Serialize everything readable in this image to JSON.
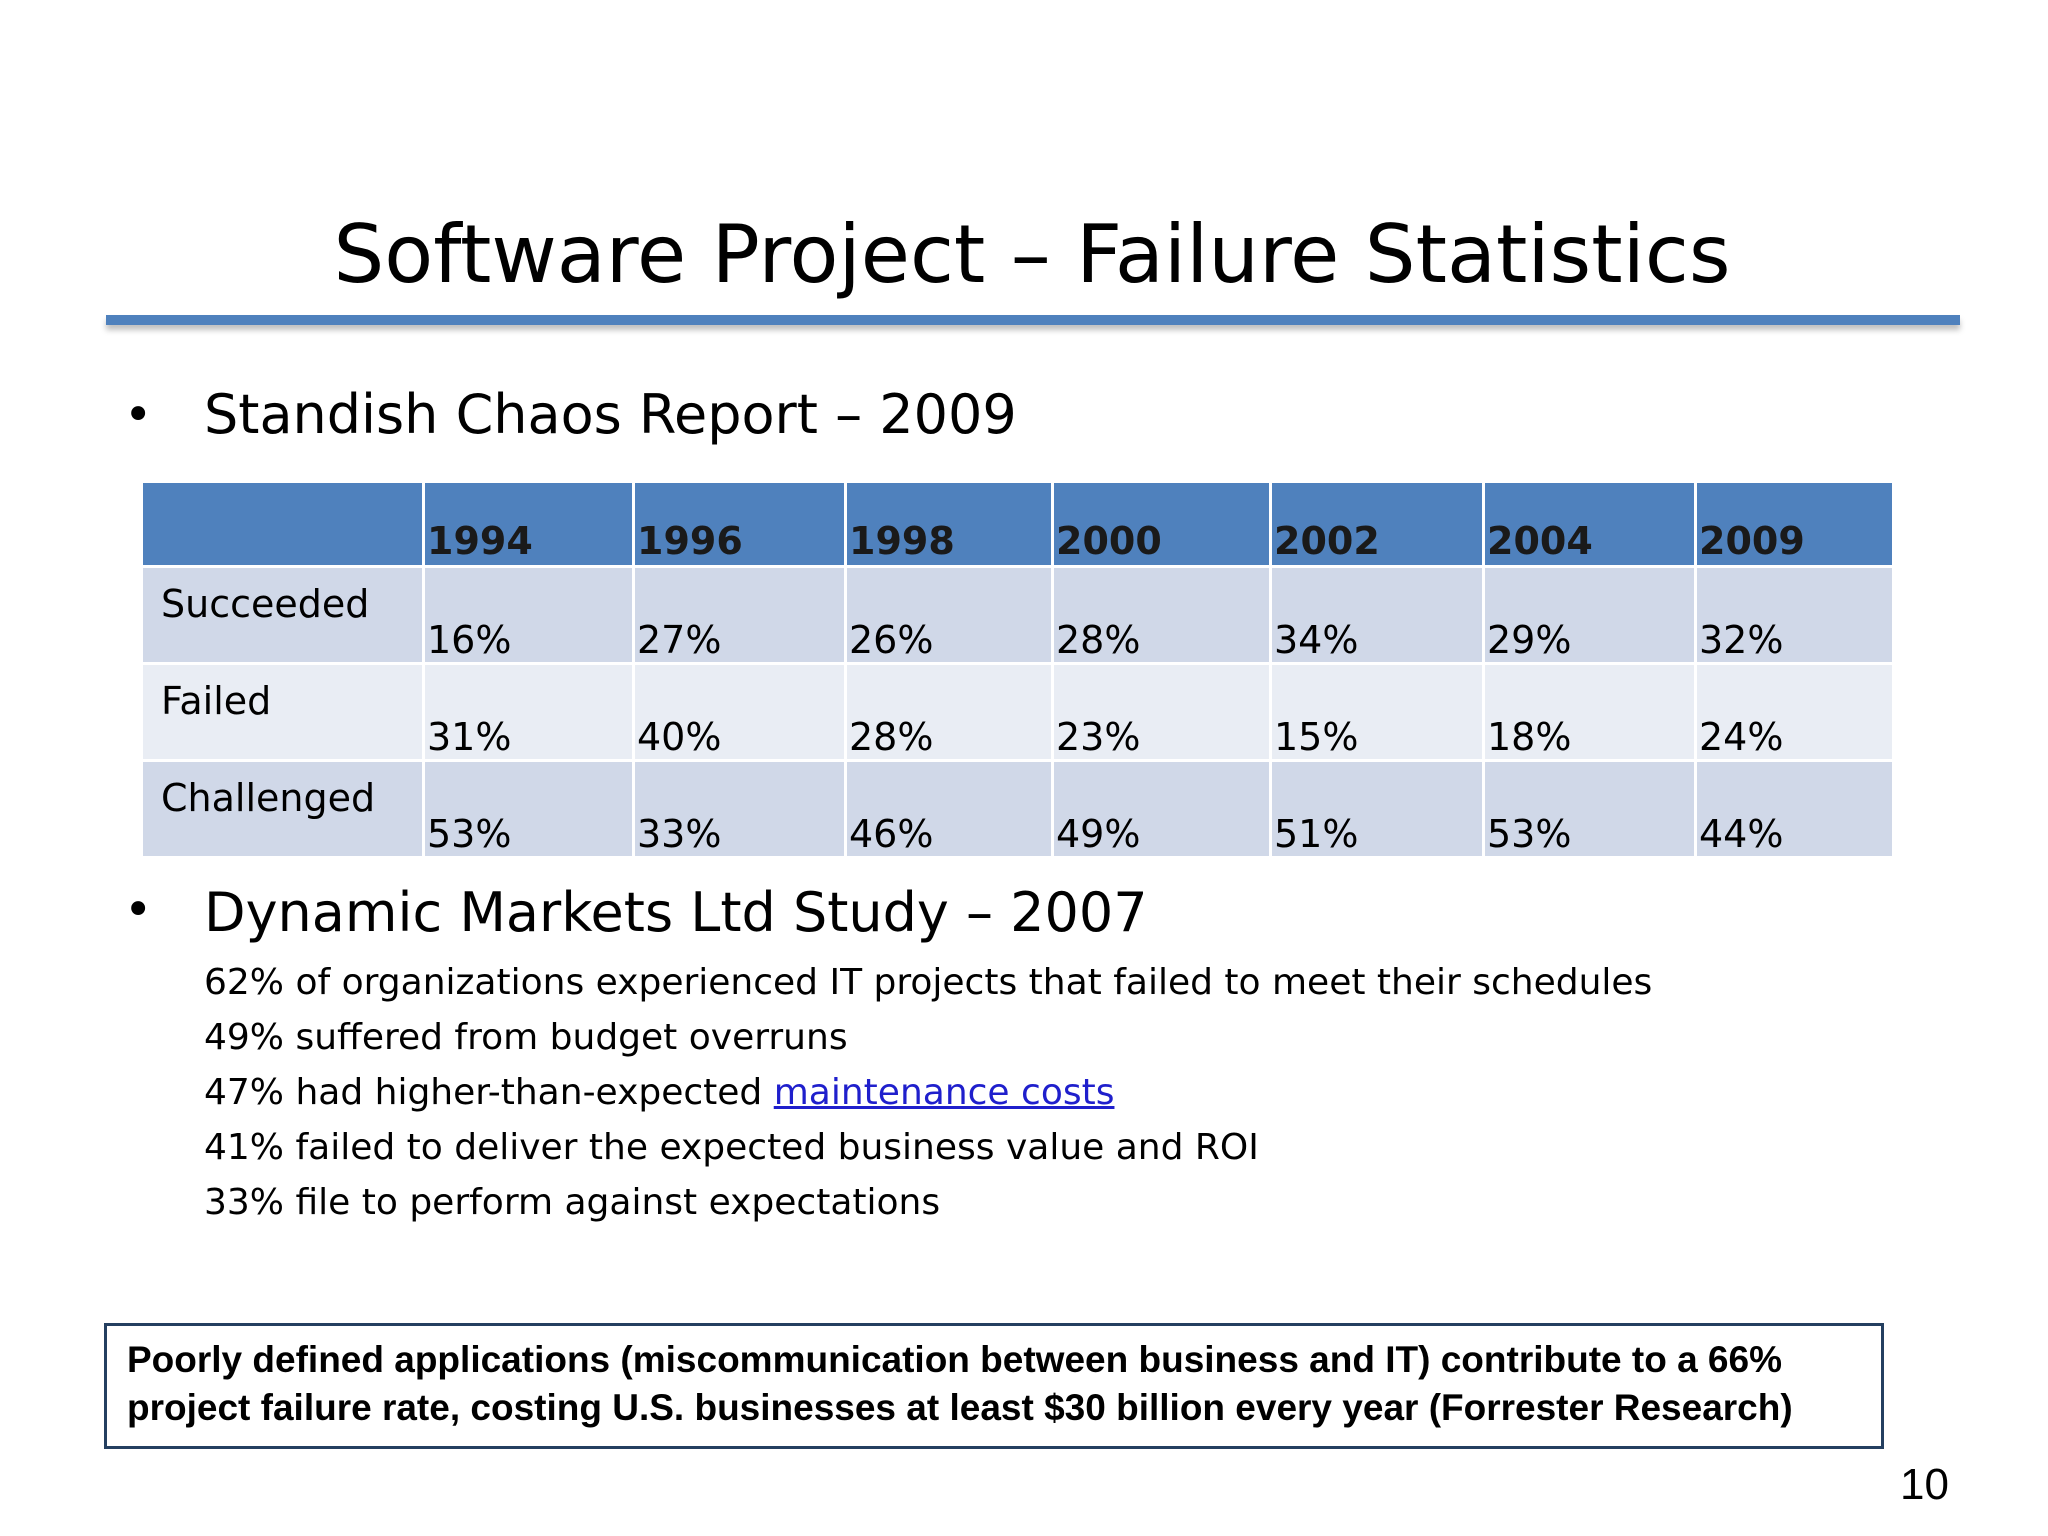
{
  "slide": {
    "title": "Software Project – Failure Statistics",
    "bullet_char": "•",
    "section1": {
      "heading": "Standish Chaos Report – 2009",
      "table": {
        "columns": [
          "",
          "1994",
          "1996",
          "1998",
          "2000",
          "2002",
          "2004",
          "2009"
        ],
        "rows": [
          {
            "label": "Succeeded",
            "values": [
              "16%",
              "27%",
              "26%",
              "28%",
              "34%",
              "29%",
              "32%"
            ]
          },
          {
            "label": "Failed",
            "values": [
              "31%",
              "40%",
              "28%",
              "23%",
              "15%",
              "18%",
              "24%"
            ]
          },
          {
            "label": "Challenged",
            "values": [
              "53%",
              "33%",
              "46%",
              "49%",
              "51%",
              "53%",
              "44%"
            ]
          }
        ]
      }
    },
    "section2": {
      "heading": "Dynamic Markets Ltd Study – 2007",
      "lines": [
        {
          "text": "62% of organizations experienced IT projects that failed to meet their schedules",
          "link": ""
        },
        {
          "text": "49% suffered from budget overruns",
          "link": ""
        },
        {
          "text": "47% had higher-than-expected ",
          "link": "maintenance costs"
        },
        {
          "text": "41% failed to deliver the expected business value and ROI",
          "link": ""
        },
        {
          "text": "33% file to perform against expectations",
          "link": ""
        }
      ]
    },
    "callout": "Poorly defined applications (miscommunication between business and IT) contribute to a 66% project failure rate, costing U.S. businesses at least $30 billion every year (Forrester Research)",
    "page_number": "10"
  },
  "colors": {
    "accent": "#4f81bd",
    "row_odd": "#d0d8e8",
    "row_even": "#e9edf4",
    "link": "#1f1fcc",
    "callout_border": "#243f60"
  }
}
